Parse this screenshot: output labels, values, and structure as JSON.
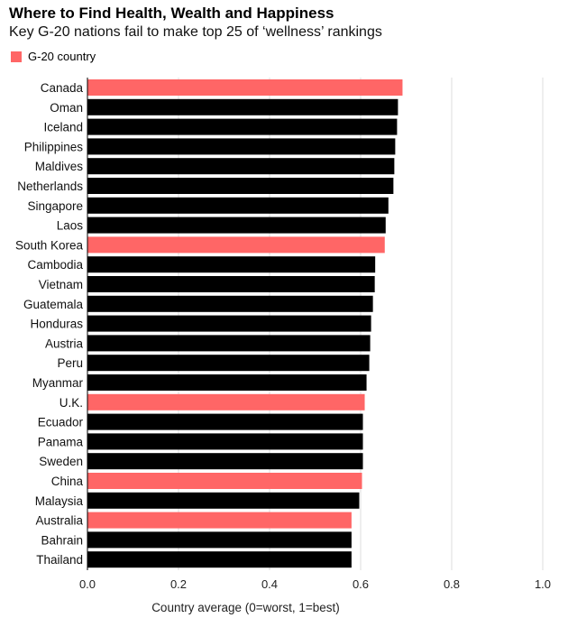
{
  "chart_data": {
    "type": "bar",
    "orientation": "horizontal",
    "title": "Where to Find Health, Wealth and Happiness",
    "subtitle": "Key G-20 nations fail to make top 25 of ‘wellness’ rankings",
    "legend": [
      {
        "label": "G-20 country",
        "color": "#ff6666"
      }
    ],
    "legend_placement": "top-left",
    "xlabel": "Country average (0=worst, 1=best)",
    "ylabel": "",
    "xlim": [
      0,
      1
    ],
    "xticks": [
      "0.0",
      "0.2",
      "0.4",
      "0.6",
      "0.8",
      "1.0"
    ],
    "grid": true,
    "categories": [
      "Canada",
      "Oman",
      "Iceland",
      "Philippines",
      "Maldives",
      "Netherlands",
      "Singapore",
      "Laos",
      "South Korea",
      "Cambodia",
      "Vietnam",
      "Guatemala",
      "Honduras",
      "Austria",
      "Peru",
      "Myanmar",
      "U.K.",
      "Ecuador",
      "Panama",
      "Sweden",
      "China",
      "Malaysia",
      "Australia",
      "Bahrain",
      "Thailand"
    ],
    "values": [
      0.692,
      0.682,
      0.68,
      0.676,
      0.674,
      0.672,
      0.661,
      0.655,
      0.653,
      0.632,
      0.631,
      0.627,
      0.623,
      0.621,
      0.619,
      0.613,
      0.609,
      0.605,
      0.605,
      0.605,
      0.603,
      0.597,
      0.58,
      0.58,
      0.58
    ],
    "g20": [
      true,
      false,
      false,
      false,
      false,
      false,
      false,
      false,
      true,
      false,
      false,
      false,
      false,
      false,
      false,
      false,
      true,
      false,
      false,
      false,
      true,
      false,
      true,
      false,
      false
    ],
    "colors": {
      "g20": "#ff6666",
      "other": "#000000",
      "grid": "#dddddd"
    }
  }
}
